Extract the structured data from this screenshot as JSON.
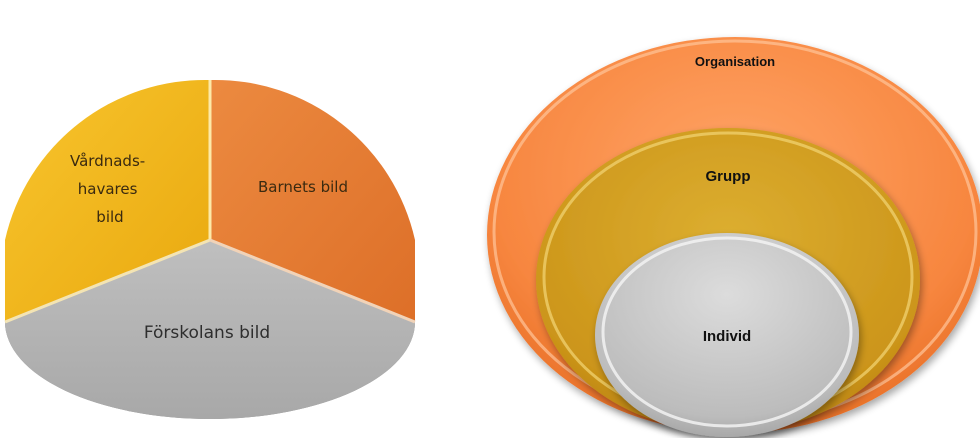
{
  "pie_diagram": {
    "segments": [
      {
        "lines": [
          "Vårdnads-",
          "havares",
          "bild"
        ],
        "color": "#f2b61c"
      },
      {
        "lines": [
          "Barnets bild"
        ],
        "color": "#e8803a"
      },
      {
        "lines": [
          "Förskolans bild"
        ],
        "color": "#b5b5b5"
      }
    ]
  },
  "nested_diagram": {
    "outer": {
      "label": "Organisation",
      "color": "#f7894a"
    },
    "middle": {
      "label": "Grupp",
      "color": "#d4a020"
    },
    "inner": {
      "label": "Individ",
      "color": "#c4c4c4"
    }
  }
}
